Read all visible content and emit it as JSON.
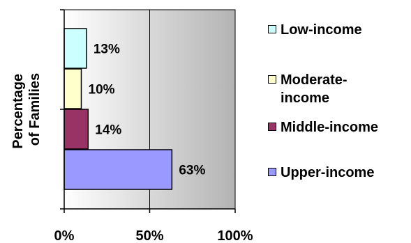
{
  "chart_data": {
    "type": "bar",
    "orientation": "horizontal",
    "stacked_vertical_order": [
      "Upper-income",
      "Middle-income",
      "Moderate-income",
      "Low-income"
    ],
    "categories": [
      "Low-income",
      "Moderate-income",
      "Middle-income",
      "Upper-income"
    ],
    "values": [
      13,
      10,
      14,
      63
    ],
    "data_labels": [
      "13%",
      "10%",
      "14%",
      "63%"
    ],
    "colors": [
      "#ccffff",
      "#ffffcc",
      "#993366",
      "#9999ff"
    ],
    "ylabel": "Percentage\nof Families",
    "xlabel": "",
    "xlim": [
      0,
      100
    ],
    "x_ticks": [
      0,
      50,
      100
    ],
    "x_tick_labels": [
      "0%",
      "50%",
      "100%"
    ],
    "grid": true,
    "legend_position": "right",
    "legend": [
      {
        "label": "Low-income",
        "color": "#ccffff"
      },
      {
        "label": "Moderate-\nincome",
        "color": "#ffffcc"
      },
      {
        "label": "Middle-income",
        "color": "#993366"
      },
      {
        "label": "Upper-income",
        "color": "#9999ff"
      }
    ]
  }
}
